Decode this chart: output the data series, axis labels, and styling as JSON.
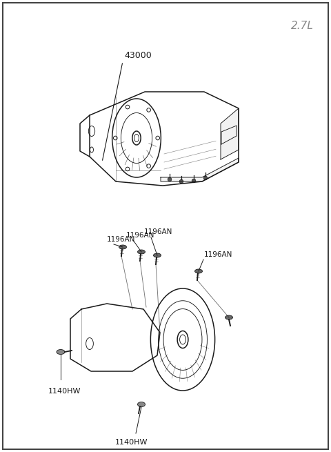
{
  "bg_color": "#ffffff",
  "line_color": "#1a1a1a",
  "label_color": "#1a1a1a",
  "corner_label": "2.7L",
  "corner_label_color": "#888888",
  "part1_label": "43000",
  "part2_labels": [
    "1196AN",
    "1196AN",
    "1196AN",
    "1196AN"
  ],
  "part3_labels": [
    "1140HW",
    "1140HW"
  ],
  "figsize": [
    4.8,
    6.55
  ],
  "dpi": 100
}
